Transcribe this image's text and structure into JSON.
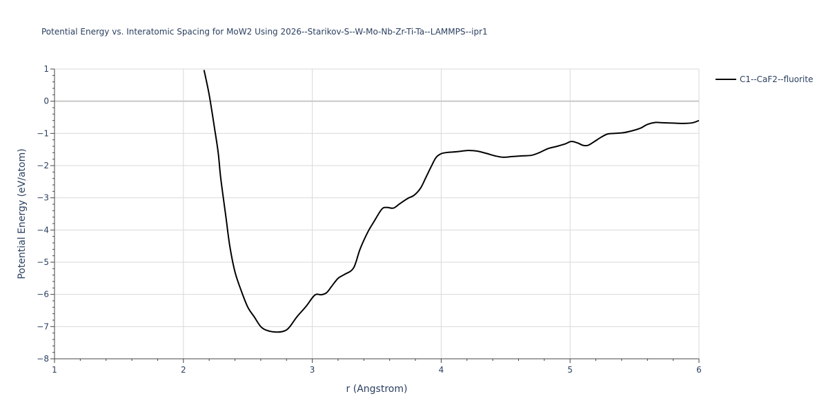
{
  "chart_data": {
    "type": "line",
    "title": "Potential Energy vs. Interatomic Spacing for MoW2 Using 2026--Starikov-S--W-Mo-Nb-Zr-Ti-Ta--LAMMPS--ipr1",
    "xlabel": "r (Angstrom)",
    "ylabel": "Potential Energy (eV/atom)",
    "xlim": [
      1,
      6
    ],
    "ylim": [
      -8,
      1
    ],
    "x_ticks": [
      "1",
      "2",
      "3",
      "4",
      "5",
      "6"
    ],
    "y_ticks": [
      "−8",
      "−7",
      "−6",
      "−5",
      "−4",
      "−3",
      "−2",
      "−1",
      "0",
      "1"
    ],
    "grid": true,
    "legend_position": "top-right",
    "series": [
      {
        "name": "C1--CaF2--fluorite",
        "color": "#000000",
        "x": [
          2.16,
          2.2,
          2.24,
          2.27,
          2.29,
          2.33,
          2.36,
          2.4,
          2.45,
          2.5,
          2.55,
          2.6,
          2.65,
          2.72,
          2.78,
          2.82,
          2.88,
          2.95,
          3.02,
          3.07,
          3.11,
          3.15,
          3.2,
          3.25,
          3.32,
          3.37,
          3.43,
          3.48,
          3.54,
          3.58,
          3.63,
          3.68,
          3.74,
          3.79,
          3.84,
          3.88,
          3.92,
          3.96,
          4.0,
          4.05,
          4.12,
          4.18,
          4.22,
          4.28,
          4.35,
          4.42,
          4.48,
          4.55,
          4.62,
          4.7,
          4.76,
          4.83,
          4.9,
          4.96,
          5.01,
          5.06,
          5.1,
          5.14,
          5.19,
          5.24,
          5.29,
          5.34,
          5.41,
          5.48,
          5.55,
          5.6,
          5.66,
          5.72,
          5.8,
          5.88,
          5.95,
          6.0
        ],
        "y": [
          0.97,
          0.2,
          -0.8,
          -1.6,
          -2.4,
          -3.6,
          -4.5,
          -5.3,
          -5.9,
          -6.4,
          -6.7,
          -7.0,
          -7.12,
          -7.17,
          -7.14,
          -7.03,
          -6.7,
          -6.38,
          -6.02,
          -6.01,
          -5.95,
          -5.75,
          -5.5,
          -5.38,
          -5.18,
          -4.6,
          -4.07,
          -3.73,
          -3.35,
          -3.3,
          -3.32,
          -3.18,
          -3.02,
          -2.92,
          -2.7,
          -2.38,
          -2.05,
          -1.75,
          -1.63,
          -1.59,
          -1.57,
          -1.54,
          -1.53,
          -1.55,
          -1.62,
          -1.7,
          -1.74,
          -1.72,
          -1.7,
          -1.68,
          -1.6,
          -1.47,
          -1.4,
          -1.33,
          -1.25,
          -1.3,
          -1.37,
          -1.37,
          -1.25,
          -1.12,
          -1.02,
          -1.0,
          -0.98,
          -0.92,
          -0.83,
          -0.72,
          -0.66,
          -0.67,
          -0.68,
          -0.69,
          -0.67,
          -0.6
        ]
      }
    ]
  }
}
